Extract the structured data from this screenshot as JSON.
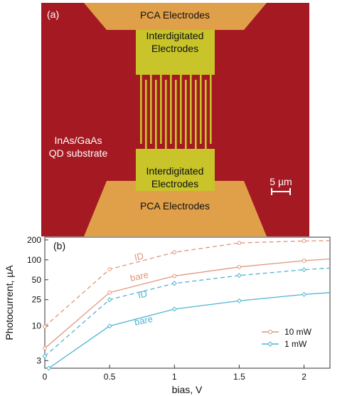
{
  "panel_a": {
    "label": "(a)",
    "pca_top": "PCA Electrodes",
    "pca_bottom": "PCA Electrodes",
    "id_top_line1": "Interdigitated",
    "id_top_line2": "Electrodes",
    "id_bottom_line1": "Interdigitated",
    "id_bottom_line2": "Electrodes",
    "substrate_line1": "InAs/GaAs",
    "substrate_line2": "QD substrate",
    "scale": "5 µm",
    "colors": {
      "substrate": "#a51a22",
      "pca": "#e0a04a",
      "id": "#c8c42a"
    }
  },
  "panel_b": {
    "label": "(b)",
    "legend": {
      "item1": "10 mW",
      "item2": "1 mW"
    },
    "annot_id_10": "ID",
    "annot_bare_10": "bare",
    "annot_id_1": "ID",
    "annot_bare_1": "bare"
  },
  "chart_data": {
    "type": "line",
    "xlabel": "bias, V",
    "ylabel": "Photocurrent, µA",
    "xlim": [
      0,
      2.2
    ],
    "ylim": [
      2.3,
      220
    ],
    "yscale": "log",
    "xticks": [
      "0",
      "0.5",
      "1",
      "1.5",
      "2"
    ],
    "yticks": [
      "3",
      "10",
      "25",
      "50",
      "100",
      "200"
    ],
    "series": [
      {
        "name": "10 mW",
        "variant": "ID",
        "dashed": true,
        "color": "#e0957a",
        "x": [
          0,
          0.5,
          1.0,
          1.5,
          2.0,
          2.2
        ],
        "y": [
          9.8,
          72,
          130,
          180,
          193,
          195
        ]
      },
      {
        "name": "10 mW",
        "variant": "bare",
        "dashed": false,
        "color": "#e0957a",
        "x": [
          0,
          0.5,
          1.0,
          1.5,
          2.0,
          2.2
        ],
        "y": [
          4.6,
          32,
          57,
          78,
          97,
          103
        ]
      },
      {
        "name": "1 mW",
        "variant": "ID",
        "dashed": true,
        "color": "#4fb4d2",
        "x": [
          0,
          0.5,
          1.0,
          1.5,
          2.0,
          2.2
        ],
        "y": [
          3.5,
          25,
          44,
          58,
          71,
          75
        ]
      },
      {
        "name": "1 mW",
        "variant": "bare",
        "dashed": false,
        "color": "#4fb4d2",
        "x": [
          0.03,
          0.5,
          1.0,
          1.5,
          2.0,
          2.2
        ],
        "y": [
          2.3,
          10,
          18,
          24,
          30,
          32
        ]
      }
    ],
    "grid": false,
    "legend_position": "bottom-right"
  }
}
